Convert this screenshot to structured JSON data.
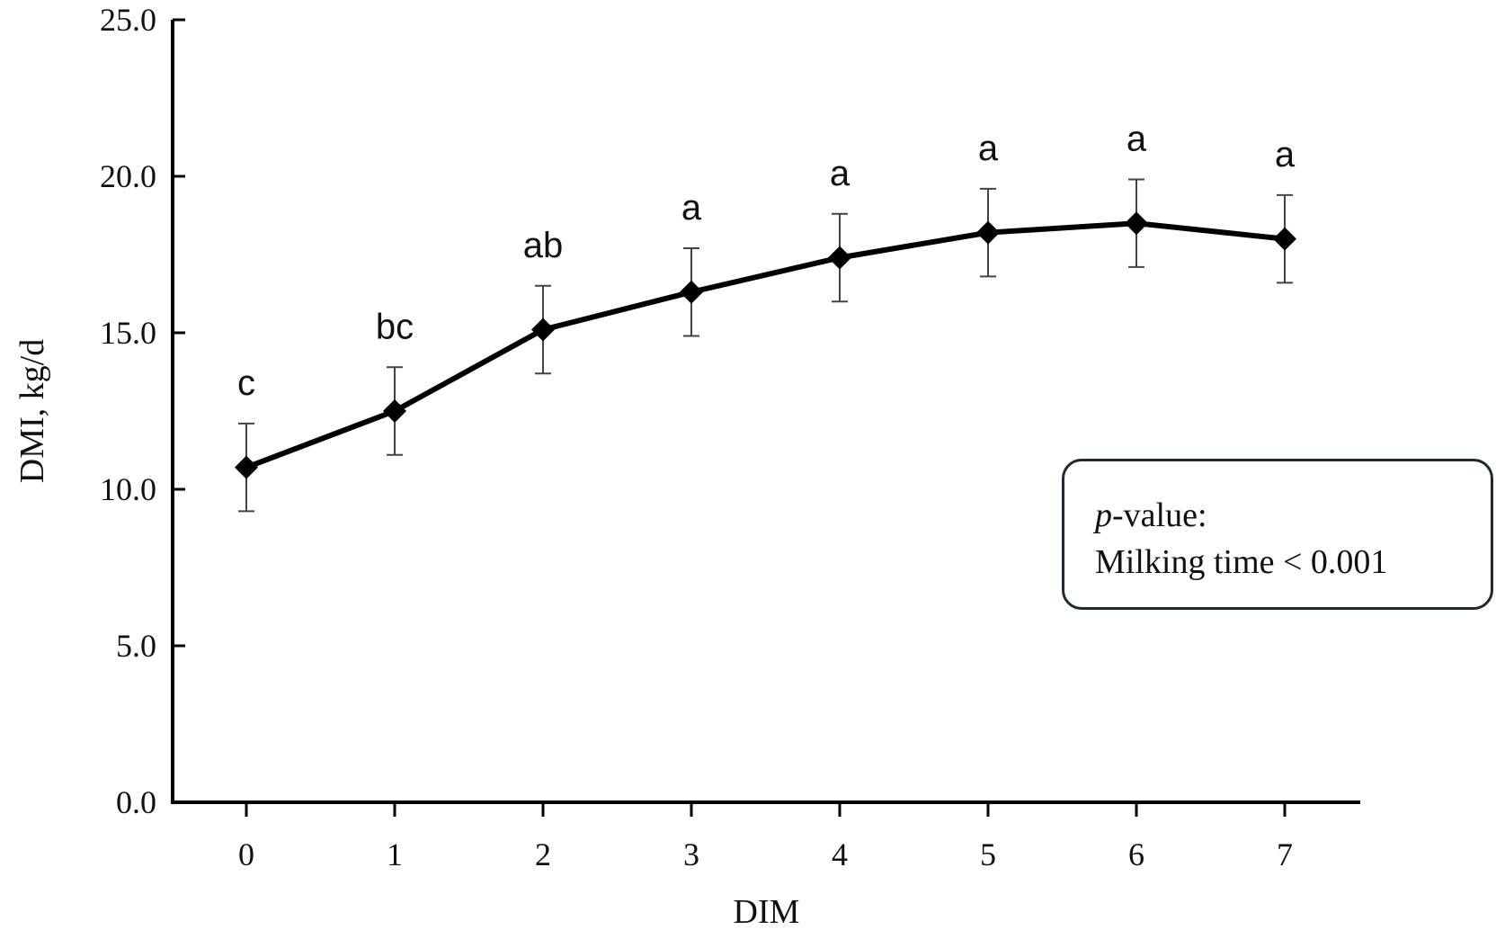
{
  "chart_data": {
    "type": "line",
    "xlabel": "DIM",
    "ylabel": "DMI, kg/d",
    "ylim": [
      0,
      25
    ],
    "yticks": [
      "0.0",
      "5.0",
      "10.0",
      "15.0",
      "20.0",
      "25.0"
    ],
    "x": [
      0,
      1,
      2,
      3,
      4,
      5,
      6,
      7
    ],
    "xtick_labels": [
      "0",
      "1",
      "2",
      "3",
      "4",
      "5",
      "6",
      "7"
    ],
    "series": [
      {
        "values": [
          10.7,
          12.5,
          15.1,
          16.3,
          17.4,
          18.2,
          18.5,
          18.0
        ],
        "error": [
          1.4,
          1.4,
          1.4,
          1.4,
          1.4,
          1.4,
          1.4,
          1.4
        ],
        "sig_letters": [
          "c",
          "bc",
          "ab",
          "a",
          "a",
          "a",
          "a",
          "a"
        ],
        "marker": "diamond",
        "color": "#000000"
      }
    ],
    "annotation": {
      "line1_italic": "p",
      "line1_rest": "-value:",
      "line2": "Milking time < 0.001"
    },
    "grid": false,
    "legend": "none"
  }
}
